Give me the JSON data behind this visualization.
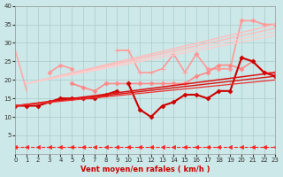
{
  "background_color": "#cce8e8",
  "grid_color": "#aacccc",
  "xlim": [
    0,
    23
  ],
  "ylim": [
    0,
    40
  ],
  "yticks": [
    5,
    10,
    15,
    20,
    25,
    30,
    35,
    40
  ],
  "xticks": [
    0,
    1,
    2,
    3,
    4,
    5,
    6,
    7,
    8,
    9,
    10,
    11,
    12,
    13,
    14,
    15,
    16,
    17,
    18,
    19,
    20,
    21,
    22,
    23
  ],
  "xlabel": "Vent moyen/en rafales ( km/h )",
  "series": [
    {
      "x": [
        0,
        1
      ],
      "y": [
        28,
        17
      ],
      "color": "#ffaaaa",
      "lw": 1.2,
      "ls": "-",
      "marker": null
    },
    {
      "x": [
        3,
        4,
        5
      ],
      "y": [
        22,
        24,
        23
      ],
      "color": "#ff9999",
      "lw": 1.2,
      "ls": "-",
      "marker": "D",
      "ms": 2.5
    },
    {
      "x": [
        9,
        10,
        11,
        12,
        13,
        14,
        15,
        16
      ],
      "y": [
        28,
        28,
        22,
        22,
        23,
        27,
        22,
        27
      ],
      "color": "#ff9999",
      "lw": 1.2,
      "ls": "-",
      "marker": "+",
      "ms": 4
    },
    {
      "x": [
        16,
        17,
        18,
        19,
        20,
        21,
        22,
        23
      ],
      "y": [
        27,
        23,
        23,
        23,
        36,
        36,
        35,
        35
      ],
      "color": "#ff9999",
      "lw": 1.2,
      "ls": "-",
      "marker": "D",
      "ms": 2.5
    },
    {
      "x": [
        1,
        23
      ],
      "y": [
        19,
        35
      ],
      "color": "#ffbbbb",
      "lw": 1.0,
      "ls": "-",
      "marker": null
    },
    {
      "x": [
        1,
        23
      ],
      "y": [
        19,
        34
      ],
      "color": "#ffbbbb",
      "lw": 1.0,
      "ls": "-",
      "marker": null
    },
    {
      "x": [
        1,
        23
      ],
      "y": [
        19,
        33
      ],
      "color": "#ffcccc",
      "lw": 0.9,
      "ls": "-",
      "marker": null
    },
    {
      "x": [
        1,
        23
      ],
      "y": [
        19,
        32
      ],
      "color": "#ffcccc",
      "lw": 0.9,
      "ls": "-",
      "marker": null
    },
    {
      "comment": "medium pink with diamond: x=5->19,6->18,7->17,8->19,9->19,10->19,11->19,12->19,13->19,14->19,15->19,16->21,17->22,18->24,19->24,20->23,21->25,22->22,23->22",
      "x": [
        5,
        6,
        7,
        8,
        9,
        10,
        11,
        12,
        13,
        14,
        15,
        16,
        17,
        18,
        19,
        20,
        21,
        22,
        23
      ],
      "y": [
        19,
        18,
        17,
        19,
        19,
        19,
        19,
        19,
        19,
        19,
        19,
        21,
        22,
        24,
        24,
        23,
        25,
        22,
        22
      ],
      "color": "#ff8888",
      "lw": 1.2,
      "ls": "-",
      "marker": "D",
      "ms": 2.5
    },
    {
      "x": [
        0,
        1,
        2,
        3,
        4,
        5,
        6,
        7,
        8,
        9
      ],
      "y": [
        13,
        13,
        13,
        14,
        15,
        15,
        15,
        15,
        16,
        17
      ],
      "color": "#cc0000",
      "lw": 1.5,
      "ls": "-",
      "marker": "D",
      "ms": 2.5
    },
    {
      "comment": "dark red jagged line: 10->19,11->12,12->10,13->13,14->14,15->16,16->16,17->15,18->17,19->17,20->26,21->25,22->22,23->21",
      "x": [
        10,
        11,
        12,
        13,
        14,
        15,
        16,
        17,
        18,
        19,
        20,
        21,
        22,
        23
      ],
      "y": [
        19,
        12,
        10,
        13,
        14,
        16,
        16,
        15,
        17,
        17,
        26,
        25,
        22,
        21
      ],
      "color": "#cc0000",
      "lw": 1.5,
      "ls": "-",
      "marker": "D",
      "ms": 2.5
    },
    {
      "x": [
        0,
        23
      ],
      "y": [
        13,
        22
      ],
      "color": "#dd1111",
      "lw": 1.1,
      "ls": "-",
      "marker": null
    },
    {
      "x": [
        0,
        23
      ],
      "y": [
        13,
        21
      ],
      "color": "#dd1111",
      "lw": 1.0,
      "ls": "-",
      "marker": null
    },
    {
      "x": [
        0,
        23
      ],
      "y": [
        13,
        20
      ],
      "color": "#ee3333",
      "lw": 0.9,
      "ls": "-",
      "marker": null
    },
    {
      "x": [
        0,
        1,
        2,
        3,
        4,
        5,
        6,
        7,
        8,
        9,
        10,
        11,
        12,
        13,
        14,
        15,
        16,
        17,
        18,
        19,
        20,
        21,
        22,
        23
      ],
      "y": [
        2,
        2,
        2,
        2,
        2,
        2,
        2,
        2,
        2,
        2,
        2,
        2,
        2,
        2,
        2,
        2,
        2,
        2,
        2,
        2,
        2,
        2,
        2,
        2
      ],
      "color": "#ff2222",
      "lw": 0.8,
      "ls": "--",
      "marker": "<",
      "ms": 3
    }
  ]
}
